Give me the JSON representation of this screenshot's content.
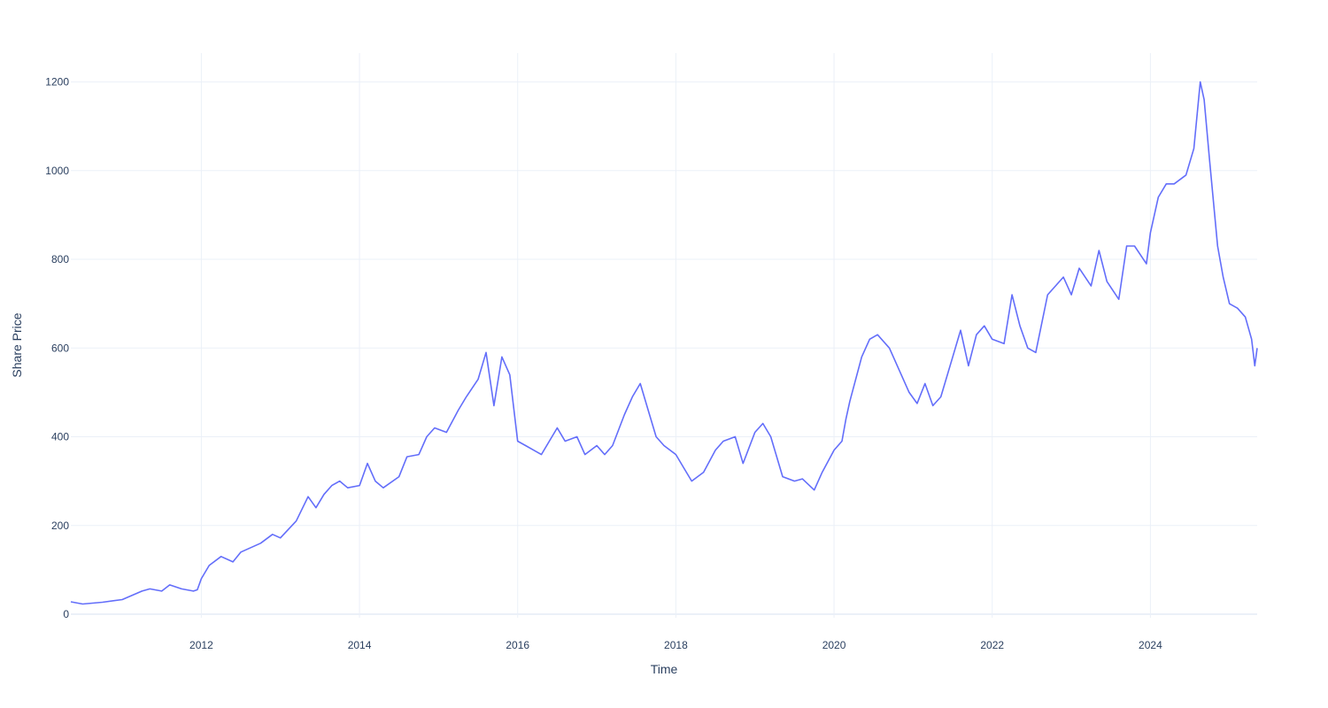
{
  "chart_data": {
    "type": "line",
    "title": "",
    "xlabel": "Time",
    "ylabel": "Share Price",
    "x_tick_labels": [
      "2012",
      "2014",
      "2016",
      "2018",
      "2020",
      "2022",
      "2024"
    ],
    "x_tick_values": [
      2012,
      2014,
      2016,
      2018,
      2020,
      2022,
      2024
    ],
    "y_tick_labels": [
      "0",
      "200",
      "400",
      "600",
      "800",
      "1000",
      "1200"
    ],
    "y_tick_values": [
      0,
      200,
      400,
      600,
      800,
      1000,
      1200
    ],
    "xlim": [
      2010.35,
      2025.35
    ],
    "ylim": [
      -8,
      1265
    ],
    "grid": true,
    "legend": "none",
    "line_color": "#636efa",
    "series": [
      {
        "x": [
          2010.35,
          2010.5,
          2010.75,
          2011.0,
          2011.25,
          2011.35,
          2011.5,
          2011.6,
          2011.75,
          2011.9,
          2011.95,
          2012.0,
          2012.1,
          2012.25,
          2012.4,
          2012.5,
          2012.6,
          2012.75,
          2012.9,
          2013.0,
          2013.2,
          2013.35,
          2013.45,
          2013.55,
          2013.65,
          2013.75,
          2013.85,
          2014.0,
          2014.1,
          2014.2,
          2014.3,
          2014.5,
          2014.6,
          2014.75,
          2014.85,
          2014.95,
          2015.1,
          2015.25,
          2015.35,
          2015.5,
          2015.6,
          2015.7,
          2015.8,
          2015.9,
          2016.0,
          2016.1,
          2016.3,
          2016.5,
          2016.6,
          2016.75,
          2016.85,
          2017.0,
          2017.1,
          2017.2,
          2017.35,
          2017.45,
          2017.55,
          2017.65,
          2017.75,
          2017.85,
          2018.0,
          2018.1,
          2018.2,
          2018.35,
          2018.5,
          2018.6,
          2018.75,
          2018.85,
          2019.0,
          2019.1,
          2019.2,
          2019.35,
          2019.5,
          2019.6,
          2019.75,
          2019.85,
          2020.0,
          2020.1,
          2020.15,
          2020.2,
          2020.35,
          2020.45,
          2020.55,
          2020.7,
          2020.8,
          2020.95,
          2021.05,
          2021.15,
          2021.25,
          2021.35,
          2021.5,
          2021.6,
          2021.7,
          2021.8,
          2021.9,
          2022.0,
          2022.15,
          2022.25,
          2022.35,
          2022.45,
          2022.55,
          2022.7,
          2022.8,
          2022.9,
          2023.0,
          2023.1,
          2023.25,
          2023.35,
          2023.45,
          2023.6,
          2023.7,
          2023.8,
          2023.95,
          2024.0,
          2024.1,
          2024.2,
          2024.3,
          2024.45,
          2024.55,
          2024.63,
          2024.68,
          2024.75,
          2024.85,
          2024.92,
          2025.0,
          2025.1,
          2025.2,
          2025.28,
          2025.32,
          2025.35
        ],
        "y": [
          28,
          23,
          27,
          33,
          52,
          57,
          52,
          66,
          57,
          52,
          55,
          80,
          110,
          130,
          118,
          140,
          148,
          160,
          180,
          172,
          210,
          265,
          240,
          270,
          290,
          300,
          285,
          290,
          340,
          300,
          285,
          310,
          355,
          360,
          400,
          420,
          410,
          460,
          490,
          530,
          590,
          470,
          580,
          540,
          390,
          380,
          360,
          420,
          390,
          400,
          360,
          380,
          360,
          380,
          450,
          490,
          520,
          460,
          400,
          380,
          360,
          330,
          300,
          320,
          370,
          390,
          400,
          340,
          410,
          430,
          400,
          310,
          300,
          305,
          280,
          320,
          370,
          390,
          440,
          480,
          580,
          620,
          630,
          600,
          560,
          500,
          475,
          520,
          470,
          490,
          580,
          640,
          560,
          630,
          650,
          620,
          610,
          720,
          650,
          600,
          590,
          720,
          740,
          760,
          720,
          780,
          740,
          820,
          750,
          710,
          830,
          830,
          790,
          860,
          940,
          970,
          970,
          990,
          1050,
          1200,
          1160,
          1020,
          830,
          760,
          700,
          690,
          670,
          620,
          560,
          600
        ]
      }
    ]
  }
}
